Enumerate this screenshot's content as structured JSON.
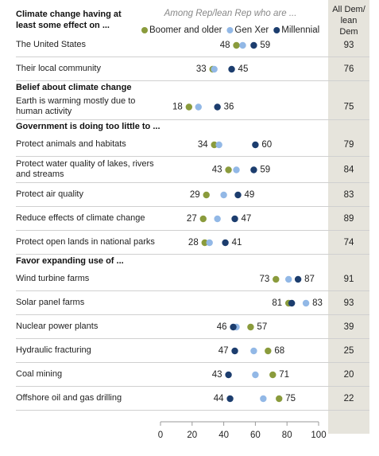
{
  "chart_data": {
    "type": "dot",
    "subtitle": "Among Rep/lean Rep who are ...",
    "groups": [
      {
        "title": "Climate change having at least some effect on ...",
        "categories": [
          "The United States",
          "Their local community"
        ]
      },
      {
        "title": "Belief about climate change",
        "categories": [
          "Earth is warming mostly due to human activity"
        ]
      },
      {
        "title": "Government is doing too little to ...",
        "categories": [
          "Protect animals and habitats",
          "Protect water quality of lakes, rivers and streams",
          "Protect air quality",
          "Reduce effects of climate change",
          "Protect open lands in national parks"
        ]
      },
      {
        "title": "Favor expanding use of ...",
        "categories": [
          "Wind turbine farms",
          "Solar panel farms",
          "Nuclear power plants",
          "Hydraulic fracturing",
          "Coal mining",
          "Offshore oil and gas drilling"
        ]
      }
    ],
    "series": [
      {
        "name": "Boomer and older",
        "color": "#8a9b3c",
        "labeled": true,
        "values": [
          48,
          33,
          18,
          34,
          43,
          29,
          27,
          28,
          73,
          81,
          57,
          68,
          71,
          75
        ]
      },
      {
        "name": "Gen Xer",
        "color": "#92b8e6",
        "labeled": false,
        "values": [
          52,
          34,
          24,
          37,
          48,
          40,
          36,
          31,
          81,
          92,
          48,
          59,
          60,
          65
        ]
      },
      {
        "name": "Millennial",
        "color": "#1c3d6e",
        "labeled": true,
        "values": [
          59,
          45,
          36,
          60,
          59,
          49,
          47,
          41,
          87,
          83,
          46,
          47,
          43,
          44
        ]
      }
    ],
    "dem_column": {
      "title": "All Dem/ lean Dem",
      "values": [
        93,
        76,
        75,
        79,
        84,
        83,
        89,
        74,
        91,
        93,
        39,
        25,
        20,
        22
      ]
    },
    "xlim": [
      0,
      100
    ],
    "xticks": [
      0,
      20,
      40,
      60,
      80,
      100
    ]
  }
}
